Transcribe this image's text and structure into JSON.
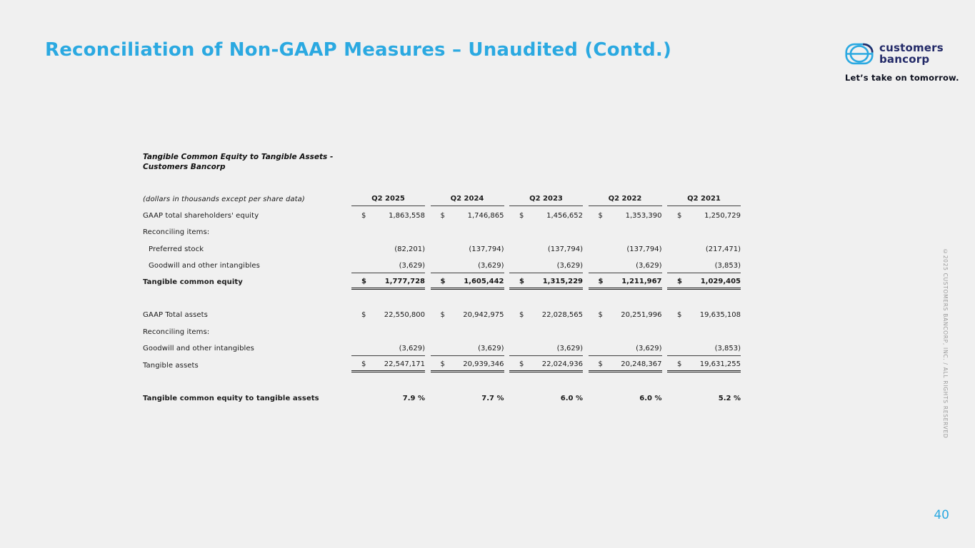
{
  "slide": {
    "title": "Reconciliation of Non-GAAP Measures – Unaudited (Contd.)",
    "page_number": "40",
    "copyright_vertical": "©2025 CUSTOMERS BANCORP, INC. / ALL RIGHTS RESERVED",
    "accent_color": "#2BA9E1",
    "background_color": "#F0F0F0"
  },
  "logo": {
    "icon": "customers-bancorp-logo-icon",
    "name_line1": "customers",
    "name_line2": "bancorp",
    "tagline": "Let’s take on tomorrow.",
    "navy_color": "#232A68",
    "blue_color": "#2BA9E1"
  },
  "table": {
    "title": "Tangible Common Equity to Tangible Assets - Customers Bancorp",
    "units_note": "(dollars in thousands except per share data)",
    "columns": [
      "Q2 2025",
      "Q2 2024",
      "Q2 2023",
      "Q2 2022",
      "Q2 2021"
    ],
    "rows": [
      {
        "label": "GAAP total shareholders' equity",
        "dollar": true,
        "values": [
          "1,863,558",
          "1,746,865",
          "1,456,652",
          "1,353,390",
          "1,250,729"
        ]
      },
      {
        "label": "Reconciling items:",
        "values": []
      },
      {
        "label": "Preferred stock",
        "indent": true,
        "values": [
          "(82,201)",
          "(137,794)",
          "(137,794)",
          "(137,794)",
          "(217,471)"
        ]
      },
      {
        "label": "Goodwill and other intangibles",
        "indent": true,
        "rule": "single",
        "values": [
          "(3,629)",
          "(3,629)",
          "(3,629)",
          "(3,629)",
          "(3,853)"
        ]
      },
      {
        "label": "Tangible common equity",
        "bold": true,
        "dollar": true,
        "rule": "double",
        "values": [
          "1,777,728",
          "1,605,442",
          "1,315,229",
          "1,211,967",
          "1,029,405"
        ]
      },
      {
        "label": "GAAP Total assets",
        "dollar": true,
        "spacer_before": true,
        "values": [
          "22,550,800",
          "20,942,975",
          "22,028,565",
          "20,251,996",
          "19,635,108"
        ]
      },
      {
        "label": "Reconciling items:",
        "values": []
      },
      {
        "label": "Goodwill and other intangibles",
        "rule": "single",
        "values": [
          "(3,629)",
          "(3,629)",
          "(3,629)",
          "(3,629)",
          "(3,853)"
        ]
      },
      {
        "label": "Tangible assets",
        "dollar": true,
        "rule": "double",
        "values": [
          "22,547,171",
          "20,939,346",
          "22,024,936",
          "20,248,367",
          "19,631,255"
        ]
      },
      {
        "label": "Tangible common equity to tangible assets",
        "bold": true,
        "spacer_before": true,
        "values": [
          "7.9 %",
          "7.7 %",
          "6.0 %",
          "6.0 %",
          "5.2 %"
        ]
      }
    ]
  }
}
